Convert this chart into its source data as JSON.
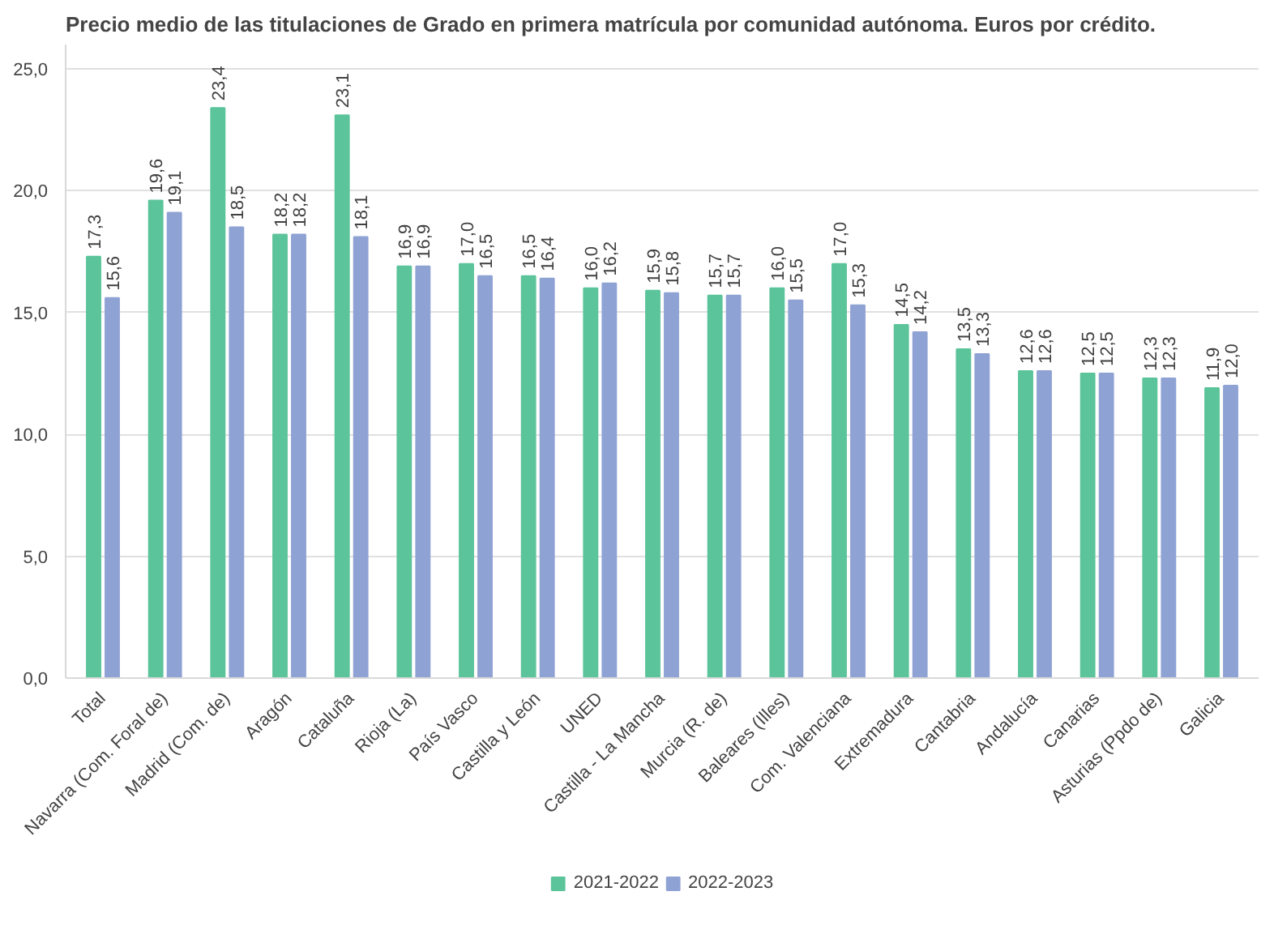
{
  "chart_data": {
    "type": "bar",
    "title": "Precio medio de las titulaciones de Grado en primera matrícula por comunidad autónoma. Euros por crédito.",
    "categories": [
      "Total",
      "Navarra (Com. Foral de)",
      "Madrid (Com. de)",
      "Aragón",
      "Cataluña",
      "Rioja (La)",
      "País Vasco",
      "Castilla y León",
      "UNED",
      "Castilla - La Mancha",
      "Murcia (R. de)",
      "Baleares (Illes)",
      "Com. Valenciana",
      "Extremadura",
      "Cantabria",
      "Andalucía",
      "Canarias",
      "Asturias (Ppdo de)",
      "Galicia"
    ],
    "series": [
      {
        "name": "2021-2022",
        "color": "#5cc49a",
        "values": [
          17.3,
          19.6,
          23.4,
          18.2,
          23.1,
          16.9,
          17.0,
          16.5,
          16.0,
          15.9,
          15.7,
          16.0,
          17.0,
          14.5,
          13.5,
          12.6,
          12.5,
          12.3,
          11.9
        ],
        "value_labels": [
          "17,3",
          "19,6",
          "23,4",
          "18,2",
          "23,1",
          "16,9",
          "17,0",
          "16,5",
          "16,0",
          "15,9",
          "15,7",
          "16,0",
          "17,0",
          "14,5",
          "13,5",
          "12,6",
          "12,5",
          "12,3",
          "11,9"
        ]
      },
      {
        "name": "2022-2023",
        "color": "#8fa2d4",
        "values": [
          15.6,
          19.1,
          18.5,
          18.2,
          18.1,
          16.9,
          16.5,
          16.4,
          16.2,
          15.8,
          15.7,
          15.5,
          15.3,
          14.2,
          13.3,
          12.6,
          12.5,
          12.3,
          12.0
        ],
        "value_labels": [
          "15,6",
          "19,1",
          "18,5",
          "18,2",
          "18,1",
          "16,9",
          "16,5",
          "16,4",
          "16,2",
          "15,8",
          "15,7",
          "15,5",
          "15,3",
          "14,2",
          "13,3",
          "12,6",
          "12,5",
          "12,3",
          "12,0"
        ]
      }
    ],
    "ylim": [
      0,
      26
    ],
    "yticks": [
      {
        "value": 0,
        "label": "0,0"
      },
      {
        "value": 5,
        "label": "5,0"
      },
      {
        "value": 10,
        "label": "10,0"
      },
      {
        "value": 15,
        "label": "15,0"
      },
      {
        "value": 20,
        "label": "20,0"
      },
      {
        "value": 25,
        "label": "25,0"
      }
    ],
    "grid": "y",
    "legend": "bottom"
  }
}
